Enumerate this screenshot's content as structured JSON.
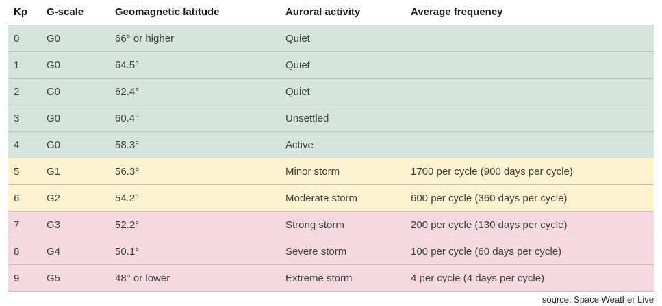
{
  "chart_data": {
    "type": "table",
    "title": "Kp index / G-scale geomagnetic storm reference table",
    "columns": [
      "Kp",
      "G-scale",
      "Geomagnetic latitude",
      "Auroral activity",
      "Average frequency"
    ],
    "column_keys": [
      "kp",
      "g-scale",
      "latitude",
      "activity",
      "frequency"
    ],
    "rows": [
      {
        "cells": [
          "0",
          "G0",
          "66° or higher",
          "Quiet",
          ""
        ],
        "level": "quiet-active"
      },
      {
        "cells": [
          "1",
          "G0",
          "64.5°",
          "Quiet",
          ""
        ],
        "level": "quiet-active"
      },
      {
        "cells": [
          "2",
          "G0",
          "62.4°",
          "Quiet",
          ""
        ],
        "level": "quiet-active"
      },
      {
        "cells": [
          "3",
          "G0",
          "60.4°",
          "Unsettled",
          ""
        ],
        "level": "quiet-active"
      },
      {
        "cells": [
          "4",
          "G0",
          "58.3°",
          "Active",
          ""
        ],
        "level": "quiet-active"
      },
      {
        "cells": [
          "5",
          "G1",
          "56.3°",
          "Minor storm",
          "1700 per cycle (900 days per cycle)"
        ],
        "level": "minor-moderate-storm"
      },
      {
        "cells": [
          "6",
          "G2",
          "54.2°",
          "Moderate storm",
          "600 per cycle (360 days per cycle)"
        ],
        "level": "minor-moderate-storm"
      },
      {
        "cells": [
          "7",
          "G3",
          "52.2°",
          "Strong storm",
          "200 per cycle (130 days per cycle)"
        ],
        "level": "strong-extreme-storm"
      },
      {
        "cells": [
          "8",
          "G4",
          "50.1°",
          "Severe storm",
          "100 per cycle (60 days per cycle)"
        ],
        "level": "strong-extreme-storm"
      },
      {
        "cells": [
          "9",
          "G5",
          "48° or lower",
          "Extreme storm",
          "4 per cycle (4 days per cycle)"
        ],
        "level": "strong-extreme-storm"
      }
    ],
    "level_colors": {
      "quiet-active": "#d6e5dc",
      "minor-moderate-storm": "#fdf3d0",
      "strong-extreme-storm": "#f5d9de"
    },
    "layout": {
      "header_background": "#ffffff",
      "row_separator_color": "rgba(0,0,0,0.25)"
    }
  },
  "footer": {
    "source_label": "source: Space Weather Live"
  }
}
